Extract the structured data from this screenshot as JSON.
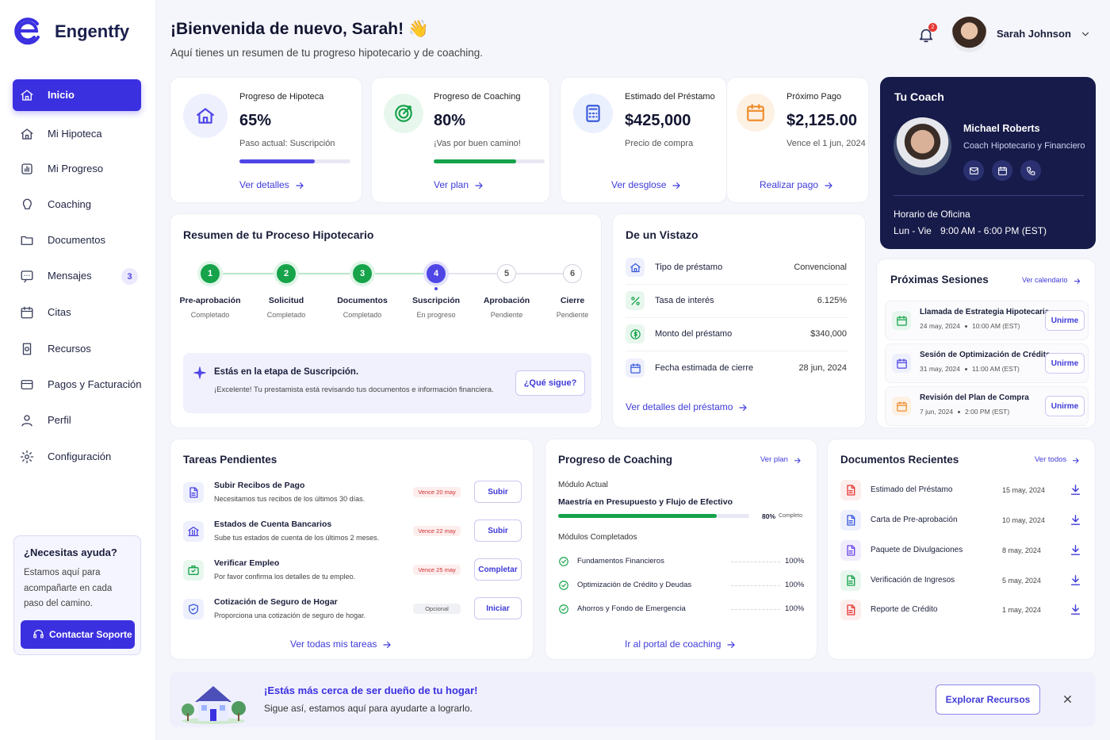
{
  "sidebar": {
    "brand": "Engentfy",
    "nav": [
      {
        "label": "Inicio"
      },
      {
        "label": "Mi Hipoteca"
      },
      {
        "label": "Mi Progreso"
      },
      {
        "label": "Coaching"
      },
      {
        "label": "Documentos"
      },
      {
        "label": "Mensajes",
        "badge": 3
      },
      {
        "label": "Citas"
      },
      {
        "label": "Recursos"
      },
      {
        "label": "Pagos y Facturación"
      },
      {
        "label": "Perfil"
      },
      {
        "label": "Configuración"
      }
    ],
    "help": {
      "title": "¿Necesitas ayuda?",
      "text": "Estamos aquí para acompañarte en cada paso del camino.",
      "button": "Contactar Soporte"
    }
  },
  "header": {
    "title": "¡Bienvenida de nuevo, Sarah! 👋",
    "subtitle": "Aquí tienes un resumen de tu progreso hipotecario y de coaching.",
    "notifications": 2,
    "user": "Sarah Johnson"
  },
  "stats": [
    {
      "title": "Progreso de Hipoteca",
      "value": "65%",
      "note": "Paso actual: Suscripción",
      "link": "Ver detalles"
    },
    {
      "title": "Progreso de Coaching",
      "value": "80%",
      "note": "¡Vas por buen camino!",
      "link": "Ver plan"
    },
    {
      "title": "Estimado del Préstamo",
      "value": "$425,000",
      "note": "Precio de compra",
      "link": "Ver desglose"
    },
    {
      "title": "Próximo Pago",
      "value": "$2,125.00",
      "note": "Vence el 1 jun, 2024",
      "link": "Realizar pago"
    }
  ],
  "coach": {
    "title": "Tu Coach",
    "name": "Michael Roberts",
    "role": "Coach Hipotecario y Financiero",
    "hours_title": "Horario de Oficina",
    "days": "Lun - Vie",
    "hours": "9:00 AM - 6:00 PM (EST)"
  },
  "process": {
    "title": "Resumen de tu Proceso Hipotecario",
    "steps": [
      {
        "n": 1,
        "name": "Pre-aprobación",
        "status": "Completado"
      },
      {
        "n": 2,
        "name": "Solicitud",
        "status": "Completado"
      },
      {
        "n": 3,
        "name": "Documentos",
        "status": "Completado"
      },
      {
        "n": 4,
        "name": "Suscripción",
        "status": "En progreso"
      },
      {
        "n": 5,
        "name": "Aprobación",
        "status": "Pendiente"
      },
      {
        "n": 6,
        "name": "Cierre",
        "status": "Pendiente"
      }
    ],
    "notice": {
      "title": "Estás en la etapa de Suscripción.",
      "text": "¡Excelente! Tu prestamista está revisando tus documentos e información financiera.",
      "button": "¿Qué sigue?"
    }
  },
  "glance": {
    "title": "De un Vistazo",
    "rows": [
      [
        "Tipo de préstamo",
        "Convencional"
      ],
      [
        "Tasa de interés",
        "6.125%"
      ],
      [
        "Monto del préstamo",
        "$340,000"
      ],
      [
        "Fecha estimada de cierre",
        "28 jun, 2024"
      ]
    ],
    "link": "Ver detalles del préstamo"
  },
  "sessions": {
    "title": "Próximas Sesiones",
    "link": "Ver calendario",
    "items": [
      {
        "title": "Llamada de Estrategia Hipotecaria",
        "date": "24 may, 2024",
        "time": "10:00 AM (EST)",
        "button": "Unirme"
      },
      {
        "title": "Sesión de Optimización de Crédito",
        "date": "31 may, 2024",
        "time": "11:00 AM (EST)",
        "button": "Unirme"
      },
      {
        "title": "Revisión del Plan de Compra",
        "date": "7 jun, 2024",
        "time": "2:00 PM (EST)",
        "button": "Unirme"
      }
    ]
  },
  "tasks": {
    "title": "Tareas Pendientes",
    "items": [
      {
        "title": "Subir Recibos de Pago",
        "text": "Necesitamos tus recibos de los últimos 30 días.",
        "due": "Vence 20 may",
        "button": "Subir"
      },
      {
        "title": "Estados de Cuenta Bancarios",
        "text": "Sube tus estados de cuenta de los últimos 2 meses.",
        "due": "Vence 22 may",
        "button": "Subir"
      },
      {
        "title": "Verificar Empleo",
        "text": "Por favor confirma los detalles de tu empleo.",
        "due": "Vence 25 may",
        "button": "Completar"
      },
      {
        "title": "Cotización de Seguro de Hogar",
        "text": "Proporciona una cotización de seguro de hogar.",
        "due": "Opcional",
        "button": "Iniciar"
      }
    ],
    "link": "Ver todas mis tareas"
  },
  "coaching": {
    "title": "Progreso de Coaching",
    "link": "Ver plan",
    "module_label": "Módulo Actual",
    "module": "Maestría en Presupuesto y Flujo de Efectivo",
    "progress": "80%",
    "progress_label": "Completo",
    "completed_label": "Módulos Completados",
    "modules": [
      [
        "Fundamentos Financieros",
        "100%"
      ],
      [
        "Optimización de Crédito y Deudas",
        "100%"
      ],
      [
        "Ahorros y Fondo de Emergencia",
        "100%"
      ]
    ],
    "portal": "Ir al portal de coaching"
  },
  "docs": {
    "title": "Documentos Recientes",
    "link": "Ver todos",
    "items": [
      [
        "Estimado del Préstamo",
        "15 may, 2024"
      ],
      [
        "Carta de Pre-aprobación",
        "10 may, 2024"
      ],
      [
        "Paquete de Divulgaciones",
        "8 may, 2024"
      ],
      [
        "Verificación de Ingresos",
        "5 may, 2024"
      ],
      [
        "Reporte de Crédito",
        "1 may, 2024"
      ]
    ]
  },
  "banner": {
    "title": "¡Estás más cerca de ser dueño de tu hogar!",
    "text": "Sigue así, estamos aquí para ayudarte a lograrlo.",
    "button": "Explorar Recursos"
  }
}
